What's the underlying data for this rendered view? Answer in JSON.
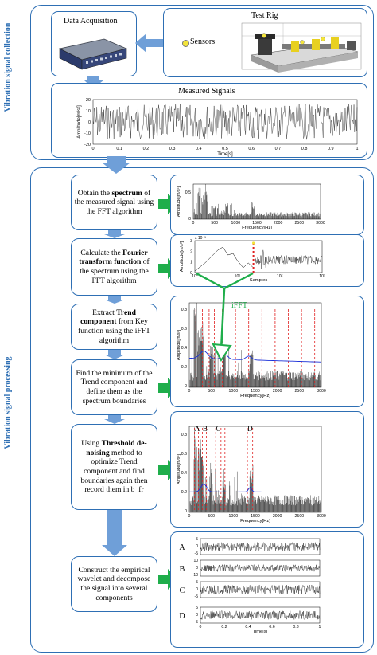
{
  "sections": {
    "collection_title": "Vibration signal collection",
    "processing_title": "Vibration signal processing"
  },
  "data_acquisition": {
    "title": "Data Acquisition"
  },
  "test_rig": {
    "title": "Test Rig",
    "sensors_label": "Sensors"
  },
  "measured_signals": {
    "title": "Measured Signals",
    "ylabel": "Amplitude[m/s²]",
    "xlabel": "Time[s]",
    "xticks": [
      "0",
      "0.1",
      "0.2",
      "0.3",
      "0.4",
      "0.5",
      "0.6",
      "0.7",
      "0.8",
      "0.9",
      "1"
    ],
    "yticks": [
      "20",
      "10",
      "0",
      "-10",
      "-20"
    ]
  },
  "steps": [
    {
      "pre": "Obtain the ",
      "bold": "spectrum",
      "post": " of the measured signal using the FFT algorithm"
    },
    {
      "pre": "Calculate the ",
      "bold": "Fourier transform function",
      "post": " of the spectrum using the FFT algorithm"
    },
    {
      "pre": "Extract ",
      "bold": "Trend component",
      "post": " from Key function using the iFFT algorithm"
    },
    {
      "pre": "Find the minimum of the Trend component and define them as the spectrum boundaries",
      "bold": "",
      "post": ""
    },
    {
      "pre": "Using ",
      "bold": "Threshold de-noising",
      "post": " method to optimize Trend component and find boundaries again then record them in b_fr"
    },
    {
      "pre": "Construct the empirical wavelet and decompose the signal into several components",
      "bold": "",
      "post": ""
    }
  ],
  "ifft_label": "iFFT",
  "spectrum_plot": {
    "ylabel": "Amplitude[m/s²]",
    "xlabel": "Frequency[Hz]",
    "xticks": [
      "0",
      "500",
      "1000",
      "1500",
      "2000",
      "2500",
      "3000"
    ],
    "yticks": [
      "0.5",
      "0"
    ]
  },
  "key_plot": {
    "ylabel": "Amplitude[m/s²]",
    "xlabel": "Samples",
    "exponent": "x 10⁻³",
    "yticks": [
      "3",
      "2",
      "1",
      "0"
    ],
    "xticks": [
      "10⁰",
      "10¹",
      "10²",
      "10³"
    ]
  },
  "trend_plot": {
    "ylabel": "Amplitude[m/s²]",
    "xlabel": "Frequency[Hz]",
    "yticks": [
      "0.8",
      "0.6",
      "0.4",
      "0.2",
      "0"
    ],
    "xticks": [
      "0",
      "500",
      "1000",
      "1500",
      "2000",
      "2500",
      "3000"
    ]
  },
  "threshold_plot": {
    "ylabel": "Amplitude[m/s²]",
    "xlabel": "Frequency[Hz]",
    "yticks": [
      "0.8",
      "0.6",
      "0.4",
      "0.2",
      "0"
    ],
    "xticks": [
      "0",
      "500",
      "1000",
      "1500",
      "2000",
      "2500",
      "3000"
    ],
    "band_labels": [
      "A",
      "B",
      "C",
      "D"
    ]
  },
  "components_plot": {
    "labels": [
      "A",
      "B",
      "C",
      "D"
    ],
    "xlabel": "Time[s]",
    "xticks": [
      "0",
      "0.2",
      "0.4",
      "0.6",
      "0.8",
      "1"
    ],
    "yticks": [
      [
        "5",
        "0",
        "-5"
      ],
      [
        "10",
        "0",
        "-10"
      ],
      [
        "5",
        "0",
        "-5"
      ],
      [
        "5",
        "0",
        "-5"
      ]
    ]
  },
  "colors": {
    "frame_blue": "#2e6fb4",
    "arrow_blue": "#6f9fd8",
    "arrow_green": "#1fae4b",
    "trend_blue": "#1a2fd8",
    "boundary_red": "#e02020"
  }
}
